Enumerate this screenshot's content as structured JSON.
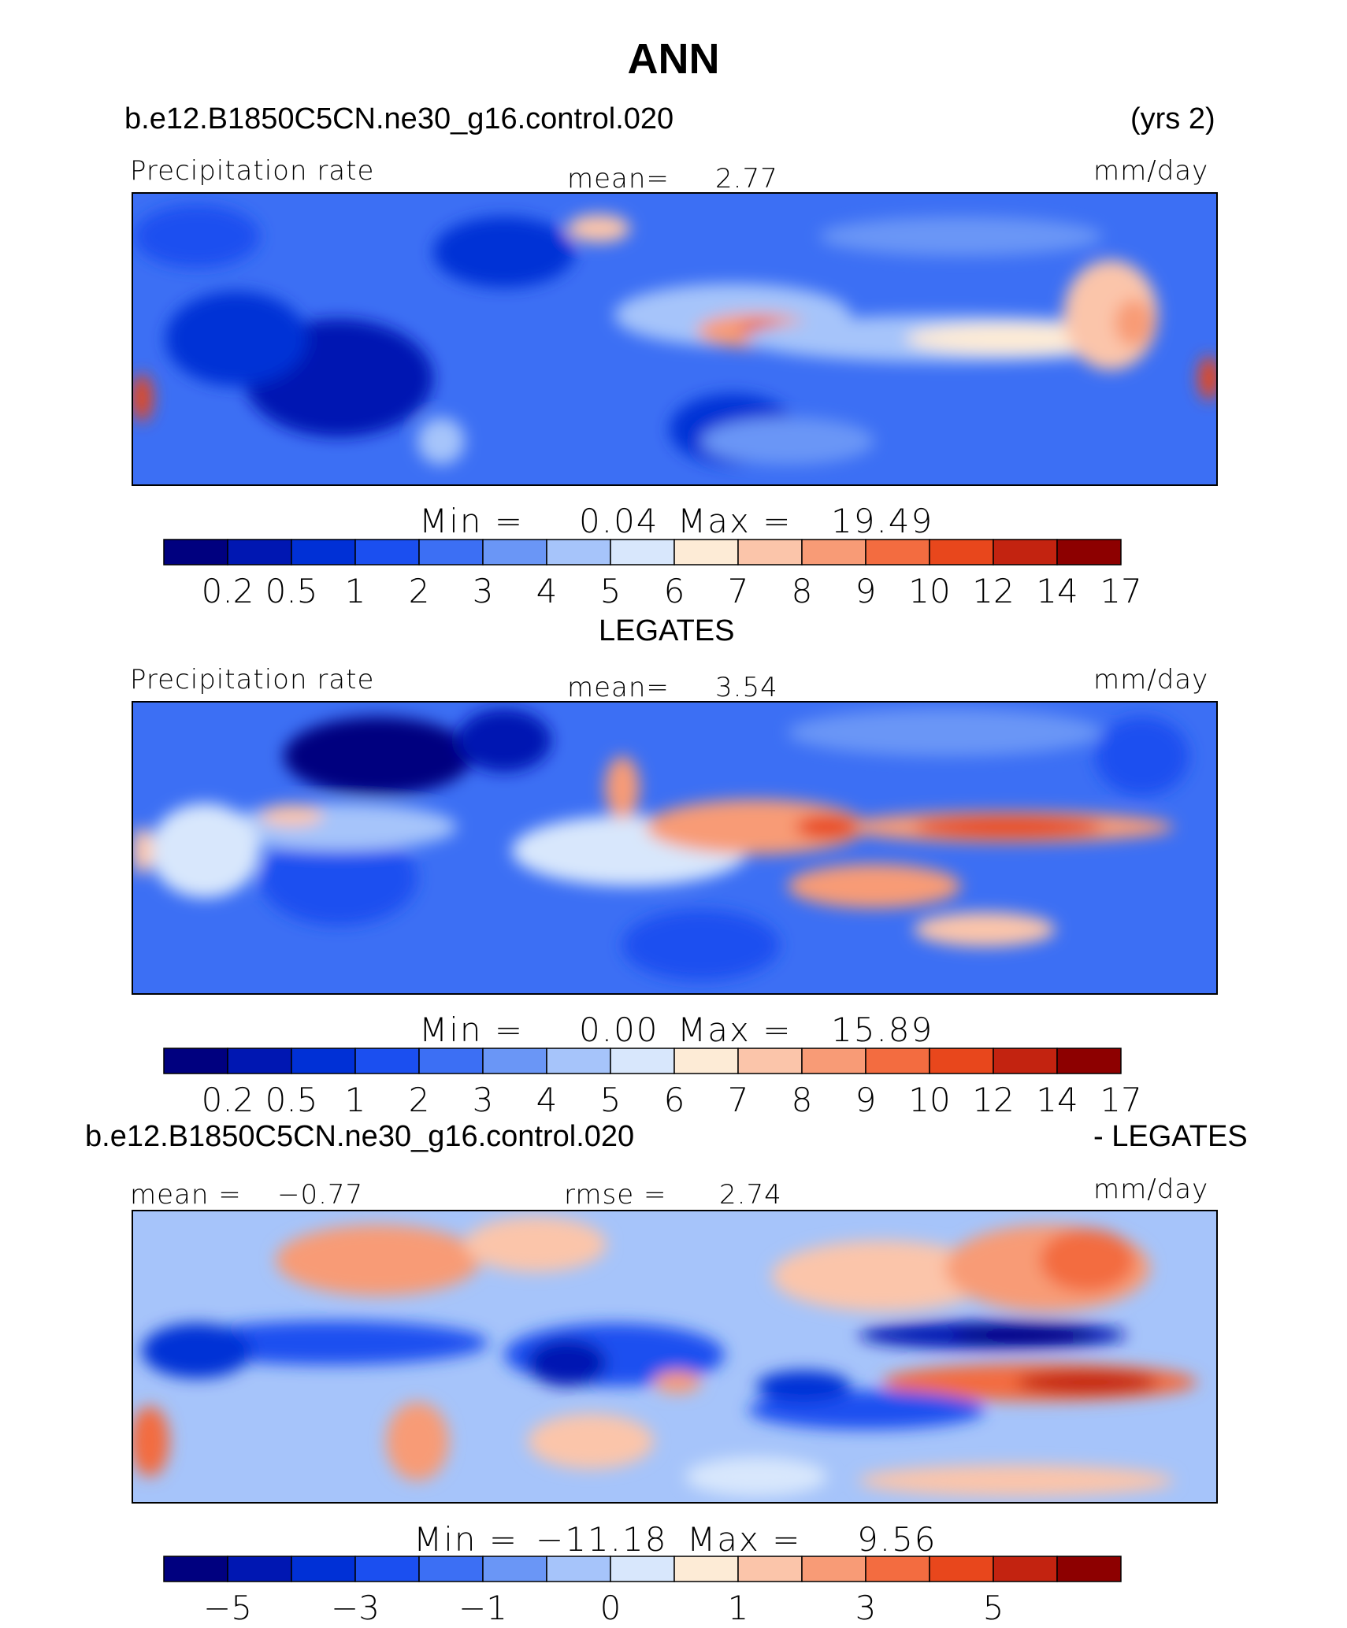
{
  "title": "ANN",
  "chart_data": [
    {
      "type": "heatmap",
      "case_name": "b.e12.B1850C5CN.ne30_g16.control.020",
      "period": "(yrs 2)",
      "variable": "Precipitation rate",
      "mean_label": "mean=",
      "mean_value": "2.77",
      "units": "mm/day",
      "min_label": "Min",
      "min_value": "0.04",
      "max_label": "Max",
      "max_value": "19.49",
      "levels": [
        "0.2",
        "0.5",
        "1",
        "2",
        "3",
        "4",
        "5",
        "6",
        "7",
        "8",
        "9",
        "10",
        "12",
        "14",
        "17"
      ],
      "palette": [
        "#00007f",
        "#0017b2",
        "#0030d6",
        "#1b4ff0",
        "#3c6ff4",
        "#6a96f6",
        "#a6c4fa",
        "#d8e7fc",
        "#fdebd6",
        "#fbc5aa",
        "#f89b76",
        "#f36c40",
        "#e8471c",
        "#c32310",
        "#8d0000"
      ]
    },
    {
      "type": "heatmap",
      "case_name": "LEGATES",
      "variable": "Precipitation rate",
      "mean_label": "mean=",
      "mean_value": "3.54",
      "units": "mm/day",
      "min_label": "Min",
      "min_value": "0.00",
      "max_label": "Max",
      "max_value": "15.89",
      "levels": [
        "0.2",
        "0.5",
        "1",
        "2",
        "3",
        "4",
        "5",
        "6",
        "7",
        "8",
        "9",
        "10",
        "12",
        "14",
        "17"
      ],
      "palette": [
        "#00007f",
        "#0017b2",
        "#0030d6",
        "#1b4ff0",
        "#3c6ff4",
        "#6a96f6",
        "#a6c4fa",
        "#d8e7fc",
        "#fdebd6",
        "#fbc5aa",
        "#f89b76",
        "#f36c40",
        "#e8471c",
        "#c32310",
        "#8d0000"
      ]
    },
    {
      "type": "heatmap",
      "case_name": "b.e12.B1850C5CN.ne30_g16.control.020",
      "diff_label": "- LEGATES",
      "mean_label": "mean =",
      "mean_value": "−0.77",
      "rmse_label": "rmse =",
      "rmse_value": "2.74",
      "units": "mm/day",
      "min_label": "Min",
      "min_value": "−11.18",
      "max_label": "Max",
      "max_value": "9.56",
      "levels": [
        "−5",
        "−3",
        "−1",
        "0",
        "1",
        "3",
        "5"
      ],
      "level_positions": [
        1,
        3,
        5,
        7,
        9,
        11,
        13
      ],
      "palette": [
        "#00007f",
        "#0017b2",
        "#0030d6",
        "#1b4ff0",
        "#3c6ff4",
        "#6a96f6",
        "#a6c4fa",
        "#d8e7fc",
        "#fdebd6",
        "#fbc5aa",
        "#f89b76",
        "#f36c40",
        "#e8471c",
        "#c32310",
        "#8d0000"
      ]
    }
  ]
}
